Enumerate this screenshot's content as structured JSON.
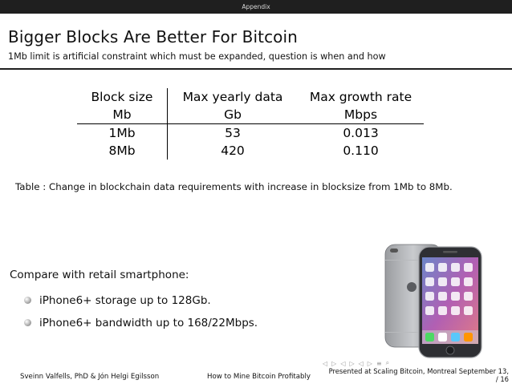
{
  "header": {
    "section": "Appendix"
  },
  "slide": {
    "title": "Bigger Blocks Are Better For Bitcoin",
    "subtitle": "1Mb limit is artificial constraint which must be expanded, question is when and how"
  },
  "table": {
    "header1": [
      "Block size",
      "Max yearly data",
      "Max growth rate"
    ],
    "header2": [
      "Mb",
      "Gb",
      "Mbps"
    ],
    "rows": [
      [
        "1Mb",
        "53",
        "0.013"
      ],
      [
        "8Mb",
        "420",
        "0.110"
      ]
    ],
    "caption": "Table : Change in blockchain data requirements with increase in blocksize from 1Mb to 8Mb."
  },
  "compare": {
    "heading": "Compare with retail smartphone:",
    "bullets": [
      "iPhone6+ storage up to 128Gb.",
      "iPhone6+ bandwidth up to 168/22Mbps."
    ]
  },
  "footer": {
    "authors": "Sveinn Valfells, PhD & Jón Helgi Egilsson",
    "talk": "How to Mine Bitcoin Profitably",
    "venue_line1": "Presented at Scaling Bitcoin, Montreal September 13,",
    "venue_line2": "/ 16"
  },
  "nav_icons": [
    "frame-prev-icon",
    "frame-next-icon",
    "section-prev-icon",
    "section-next-icon",
    "subsection-prev-icon",
    "subsection-next-icon",
    "align-icon",
    "search-icon"
  ],
  "colors": {
    "topbar": "#1f1f1f",
    "topbar_text": "#d8d8d8",
    "rule": "#1f1f1f"
  }
}
